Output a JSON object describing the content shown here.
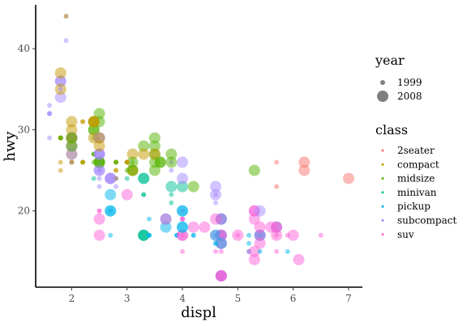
{
  "chart_data": {
    "type": "scatter",
    "xlabel": "displ",
    "ylabel": "hwy",
    "x_ticks": [
      2,
      3,
      4,
      5,
      6,
      7
    ],
    "y_ticks": [
      20,
      30,
      40
    ],
    "xlim": [
      1.35,
      7.25
    ],
    "ylim": [
      10.6,
      45.4
    ],
    "grid": false,
    "legend_placement": "right",
    "legends": [
      {
        "title": "year",
        "kind": "size",
        "entries": [
          {
            "label": "1999",
            "radius": 3
          },
          {
            "label": "2008",
            "radius": 7
          }
        ]
      },
      {
        "title": "class",
        "kind": "color",
        "entries": [
          {
            "label": "2seater",
            "color": "#F8766D"
          },
          {
            "label": "compact",
            "color": "#C49A00"
          },
          {
            "label": "midsize",
            "color": "#53B400"
          },
          {
            "label": "minivan",
            "color": "#00C094"
          },
          {
            "label": "pickup",
            "color": "#00B6EB"
          },
          {
            "label": "subcompact",
            "color": "#A58AFF"
          },
          {
            "label": "suv",
            "color": "#FB61D7"
          }
        ]
      }
    ],
    "alpha": 0.5,
    "points": [
      [
        1.8,
        29,
        "compact",
        1999
      ],
      [
        1.8,
        29,
        "compact",
        1999
      ],
      [
        2.0,
        31,
        "compact",
        2008
      ],
      [
        2.0,
        30,
        "compact",
        2008
      ],
      [
        2.8,
        26,
        "compact",
        1999
      ],
      [
        2.8,
        26,
        "compact",
        1999
      ],
      [
        3.1,
        27,
        "compact",
        2008
      ],
      [
        1.8,
        26,
        "compact",
        1999
      ],
      [
        1.8,
        25,
        "compact",
        1999
      ],
      [
        2.0,
        28,
        "compact",
        2008
      ],
      [
        2.0,
        27,
        "compact",
        2008
      ],
      [
        2.8,
        25,
        "compact",
        1999
      ],
      [
        2.8,
        25,
        "compact",
        1999
      ],
      [
        3.1,
        25,
        "compact",
        2008
      ],
      [
        3.1,
        25,
        "compact",
        2008
      ],
      [
        2.8,
        24,
        "midsize",
        1999
      ],
      [
        3.1,
        25,
        "midsize",
        2008
      ],
      [
        4.2,
        23,
        "midsize",
        2008
      ],
      [
        5.3,
        20,
        "suv",
        2008
      ],
      [
        5.3,
        15,
        "suv",
        2008
      ],
      [
        5.3,
        20,
        "suv",
        2008
      ],
      [
        5.7,
        17,
        "suv",
        1999
      ],
      [
        6.0,
        17,
        "suv",
        2008
      ],
      [
        5.7,
        26,
        "2seater",
        1999
      ],
      [
        5.7,
        23,
        "2seater",
        1999
      ],
      [
        6.2,
        26,
        "2seater",
        2008
      ],
      [
        6.2,
        25,
        "2seater",
        2008
      ],
      [
        7.0,
        24,
        "2seater",
        2008
      ],
      [
        5.3,
        19,
        "suv",
        2008
      ],
      [
        5.3,
        14,
        "suv",
        2008
      ],
      [
        5.7,
        15,
        "suv",
        1999
      ],
      [
        6.5,
        17,
        "suv",
        1999
      ],
      [
        2.4,
        27,
        "midsize",
        1999
      ],
      [
        2.4,
        30,
        "midsize",
        2008
      ],
      [
        3.1,
        26,
        "midsize",
        1999
      ],
      [
        3.5,
        29,
        "midsize",
        2008
      ],
      [
        3.6,
        26,
        "midsize",
        2008
      ],
      [
        2.4,
        24,
        "minivan",
        1999
      ],
      [
        3.0,
        24,
        "minivan",
        1999
      ],
      [
        3.3,
        22,
        "minivan",
        1999
      ],
      [
        3.3,
        22,
        "minivan",
        1999
      ],
      [
        3.3,
        24,
        "minivan",
        2008
      ],
      [
        3.3,
        24,
        "minivan",
        2008
      ],
      [
        3.3,
        17,
        "minivan",
        2008
      ],
      [
        3.8,
        22,
        "minivan",
        1999
      ],
      [
        3.8,
        21,
        "minivan",
        1999
      ],
      [
        3.8,
        23,
        "minivan",
        2008
      ],
      [
        4.0,
        23,
        "minivan",
        2008
      ],
      [
        3.7,
        19,
        "pickup",
        2008
      ],
      [
        3.7,
        18,
        "pickup",
        2008
      ],
      [
        3.9,
        17,
        "pickup",
        1999
      ],
      [
        3.9,
        17,
        "pickup",
        1999
      ],
      [
        4.7,
        19,
        "pickup",
        2008
      ],
      [
        4.7,
        19,
        "pickup",
        2008
      ],
      [
        4.7,
        12,
        "pickup",
        2008
      ],
      [
        5.2,
        17,
        "pickup",
        1999
      ],
      [
        5.2,
        15,
        "pickup",
        1999
      ],
      [
        3.9,
        17,
        "pickup",
        1999
      ],
      [
        4.7,
        17,
        "pickup",
        2008
      ],
      [
        4.7,
        12,
        "pickup",
        2008
      ],
      [
        4.7,
        17,
        "pickup",
        2008
      ],
      [
        5.2,
        16,
        "pickup",
        1999
      ],
      [
        5.7,
        18,
        "pickup",
        2008
      ],
      [
        5.9,
        15,
        "pickup",
        1999
      ],
      [
        4.7,
        16,
        "suv",
        2008
      ],
      [
        4.7,
        12,
        "suv",
        2008
      ],
      [
        4.7,
        17,
        "suv",
        2008
      ],
      [
        4.7,
        17,
        "suv",
        2008
      ],
      [
        4.7,
        16,
        "suv",
        2008
      ],
      [
        4.7,
        12,
        "suv",
        2008
      ],
      [
        5.2,
        15,
        "suv",
        1999
      ],
      [
        5.7,
        17,
        "suv",
        2008
      ],
      [
        5.9,
        17,
        "suv",
        1999
      ],
      [
        4.6,
        17,
        "pickup",
        1999
      ],
      [
        5.4,
        17,
        "pickup",
        1999
      ],
      [
        5.4,
        17,
        "pickup",
        2008
      ],
      [
        4.0,
        19,
        "suv",
        1999
      ],
      [
        4.0,
        19,
        "suv",
        1999
      ],
      [
        4.0,
        17,
        "suv",
        2008
      ],
      [
        4.0,
        17,
        "suv",
        2008
      ],
      [
        4.6,
        17,
        "suv",
        2008
      ],
      [
        5.0,
        17,
        "suv",
        1999
      ],
      [
        4.2,
        17,
        "pickup",
        1999
      ],
      [
        4.2,
        17,
        "pickup",
        1999
      ],
      [
        4.6,
        16,
        "pickup",
        1999
      ],
      [
        4.6,
        16,
        "pickup",
        1999
      ],
      [
        4.6,
        17,
        "pickup",
        2008
      ],
      [
        5.4,
        15,
        "pickup",
        1999
      ],
      [
        5.4,
        17,
        "pickup",
        2008
      ],
      [
        3.8,
        26,
        "subcompact",
        1999
      ],
      [
        3.8,
        25,
        "subcompact",
        1999
      ],
      [
        4.0,
        26,
        "subcompact",
        2008
      ],
      [
        4.0,
        24,
        "subcompact",
        2008
      ],
      [
        4.6,
        21,
        "subcompact",
        1999
      ],
      [
        4.6,
        22,
        "subcompact",
        1999
      ],
      [
        4.6,
        23,
        "subcompact",
        2008
      ],
      [
        4.6,
        22,
        "subcompact",
        2008
      ],
      [
        5.4,
        20,
        "subcompact",
        2008
      ],
      [
        1.6,
        33,
        "subcompact",
        1999
      ],
      [
        1.6,
        32,
        "subcompact",
        1999
      ],
      [
        1.6,
        32,
        "subcompact",
        1999
      ],
      [
        1.6,
        29,
        "subcompact",
        1999
      ],
      [
        1.6,
        32,
        "subcompact",
        1999
      ],
      [
        1.8,
        34,
        "subcompact",
        2008
      ],
      [
        1.8,
        36,
        "subcompact",
        2008
      ],
      [
        1.8,
        36,
        "subcompact",
        2008
      ],
      [
        2.0,
        29,
        "subcompact",
        2008
      ],
      [
        2.4,
        26,
        "midsize",
        1999
      ],
      [
        2.4,
        27,
        "midsize",
        1999
      ],
      [
        2.4,
        30,
        "midsize",
        2008
      ],
      [
        2.4,
        31,
        "midsize",
        2008
      ],
      [
        2.5,
        26,
        "midsize",
        2008
      ],
      [
        2.5,
        26,
        "midsize",
        2008
      ],
      [
        3.3,
        28,
        "midsize",
        2008
      ],
      [
        2.0,
        26,
        "subcompact",
        1999
      ],
      [
        2.0,
        29,
        "subcompact",
        1999
      ],
      [
        2.0,
        28,
        "subcompact",
        2008
      ],
      [
        2.0,
        27,
        "subcompact",
        2008
      ],
      [
        2.7,
        24,
        "subcompact",
        2008
      ],
      [
        2.7,
        24,
        "subcompact",
        2008
      ],
      [
        2.7,
        24,
        "subcompact",
        2008
      ],
      [
        3.0,
        22,
        "suv",
        2008
      ],
      [
        3.7,
        19,
        "suv",
        2008
      ],
      [
        4.0,
        20,
        "suv",
        1999
      ],
      [
        4.7,
        17,
        "suv",
        1999
      ],
      [
        4.7,
        12,
        "suv",
        2008
      ],
      [
        4.7,
        19,
        "suv",
        2008
      ],
      [
        5.7,
        18,
        "suv",
        2008
      ],
      [
        6.1,
        14,
        "suv",
        2008
      ],
      [
        4.0,
        15,
        "suv",
        1999
      ],
      [
        4.2,
        18,
        "suv",
        2008
      ],
      [
        4.4,
        18,
        "suv",
        2008
      ],
      [
        4.6,
        15,
        "suv",
        1999
      ],
      [
        5.4,
        17,
        "suv",
        2008
      ],
      [
        5.4,
        16,
        "suv",
        2008
      ],
      [
        5.4,
        18,
        "suv",
        2008
      ],
      [
        4.0,
        17,
        "suv",
        1999
      ],
      [
        4.0,
        19,
        "suv",
        1999
      ],
      [
        4.6,
        19,
        "suv",
        2008
      ],
      [
        5.0,
        17,
        "suv",
        2008
      ],
      [
        2.4,
        29,
        "midsize",
        1999
      ],
      [
        2.4,
        27,
        "midsize",
        1999
      ],
      [
        2.5,
        31,
        "midsize",
        2008
      ],
      [
        2.5,
        32,
        "midsize",
        2008
      ],
      [
        3.5,
        27,
        "midsize",
        2008
      ],
      [
        3.5,
        26,
        "midsize",
        2008
      ],
      [
        3.0,
        26,
        "midsize",
        1999
      ],
      [
        3.0,
        25,
        "midsize",
        1999
      ],
      [
        3.5,
        25,
        "midsize",
        2008
      ],
      [
        3.3,
        17,
        "minivan",
        2008
      ],
      [
        3.3,
        17,
        "minivan",
        2008
      ],
      [
        4.0,
        20,
        "pickup",
        2008
      ],
      [
        5.6,
        18,
        "suv",
        2008
      ],
      [
        3.1,
        26,
        "midsize",
        2008
      ],
      [
        3.8,
        26,
        "midsize",
        2008
      ],
      [
        3.8,
        27,
        "midsize",
        2008
      ],
      [
        3.5,
        28,
        "midsize",
        2008
      ],
      [
        5.3,
        25,
        "midsize",
        2008
      ],
      [
        2.5,
        25,
        "subcompact",
        1999
      ],
      [
        2.5,
        24,
        "subcompact",
        1999
      ],
      [
        2.5,
        27,
        "subcompact",
        2008
      ],
      [
        2.5,
        25,
        "subcompact",
        2008
      ],
      [
        2.5,
        26,
        "subcompact",
        1999
      ],
      [
        2.5,
        23,
        "subcompact",
        1999
      ],
      [
        2.2,
        26,
        "midsize",
        1999
      ],
      [
        2.2,
        26,
        "midsize",
        1999
      ],
      [
        2.5,
        26,
        "midsize",
        2008
      ],
      [
        2.5,
        26,
        "midsize",
        2008
      ],
      [
        2.5,
        25,
        "subcompact",
        1999
      ],
      [
        2.5,
        27,
        "subcompact",
        2008
      ],
      [
        2.5,
        25,
        "subcompact",
        2008
      ],
      [
        2.5,
        27,
        "subcompact",
        2008
      ],
      [
        2.5,
        20,
        "suv",
        1999
      ],
      [
        2.5,
        20,
        "suv",
        1999
      ],
      [
        2.5,
        19,
        "suv",
        2008
      ],
      [
        2.5,
        17,
        "suv",
        2008
      ],
      [
        2.7,
        20,
        "pickup",
        1999
      ],
      [
        2.7,
        17,
        "pickup",
        1999
      ],
      [
        3.4,
        17,
        "pickup",
        1999
      ],
      [
        3.4,
        17,
        "pickup",
        1999
      ],
      [
        4.0,
        18,
        "pickup",
        2008
      ],
      [
        4.7,
        16,
        "pickup",
        2008
      ],
      [
        2.2,
        31,
        "compact",
        1999
      ],
      [
        2.2,
        31,
        "compact",
        1999
      ],
      [
        2.4,
        31,
        "compact",
        2008
      ],
      [
        2.4,
        31,
        "compact",
        2008
      ],
      [
        3.0,
        26,
        "compact",
        1999
      ],
      [
        3.0,
        26,
        "compact",
        1999
      ],
      [
        3.5,
        27,
        "compact",
        2008
      ],
      [
        2.2,
        26,
        "compact",
        1999
      ],
      [
        2.2,
        26,
        "compact",
        1999
      ],
      [
        2.4,
        29,
        "compact",
        2008
      ],
      [
        2.4,
        31,
        "compact",
        2008
      ],
      [
        3.0,
        26,
        "compact",
        1999
      ],
      [
        3.0,
        26,
        "compact",
        1999
      ],
      [
        3.3,
        27,
        "compact",
        2008
      ],
      [
        1.8,
        29,
        "compact",
        1999
      ],
      [
        1.8,
        29,
        "compact",
        1999
      ],
      [
        1.8,
        35,
        "compact",
        2008
      ],
      [
        1.8,
        37,
        "compact",
        2008
      ],
      [
        1.8,
        35,
        "subcompact",
        1999
      ],
      [
        4.7,
        15,
        "suv",
        1999
      ],
      [
        5.7,
        18,
        "suv",
        2008
      ],
      [
        2.7,
        20,
        "pickup",
        2008
      ],
      [
        2.7,
        20,
        "pickup",
        2008
      ],
      [
        2.7,
        22,
        "pickup",
        2008
      ],
      [
        3.4,
        17,
        "pickup",
        1999
      ],
      [
        3.4,
        19,
        "pickup",
        1999
      ],
      [
        4.0,
        18,
        "pickup",
        2008
      ],
      [
        4.0,
        20,
        "pickup",
        2008
      ],
      [
        2.0,
        29,
        "compact",
        1999
      ],
      [
        2.0,
        26,
        "compact",
        1999
      ],
      [
        2.0,
        29,
        "compact",
        2008
      ],
      [
        2.0,
        29,
        "compact",
        2008
      ],
      [
        2.8,
        24,
        "compact",
        1999
      ],
      [
        1.9,
        44,
        "subcompact",
        1999
      ],
      [
        2.0,
        29,
        "subcompact",
        1999
      ],
      [
        2.0,
        26,
        "subcompact",
        1999
      ],
      [
        2.0,
        29,
        "subcompact",
        2008
      ],
      [
        2.0,
        29,
        "subcompact",
        2008
      ],
      [
        2.5,
        29,
        "subcompact",
        2008
      ],
      [
        2.5,
        29,
        "subcompact",
        2008
      ],
      [
        2.8,
        23,
        "subcompact",
        1999
      ],
      [
        2.8,
        24,
        "subcompact",
        1999
      ],
      [
        1.9,
        44,
        "compact",
        1999
      ],
      [
        1.9,
        41,
        "subcompact",
        1999
      ],
      [
        2.0,
        29,
        "compact",
        2008
      ],
      [
        2.0,
        26,
        "compact",
        1999
      ],
      [
        2.5,
        28,
        "compact",
        2008
      ],
      [
        2.5,
        29,
        "compact",
        2008
      ],
      [
        1.8,
        29,
        "midsize",
        1999
      ],
      [
        1.8,
        29,
        "midsize",
        1999
      ],
      [
        2.0,
        28,
        "midsize",
        2008
      ],
      [
        2.0,
        29,
        "midsize",
        2008
      ],
      [
        2.8,
        26,
        "midsize",
        1999
      ],
      [
        2.8,
        26,
        "midsize",
        1999
      ],
      [
        3.6,
        26,
        "midsize",
        2008
      ]
    ]
  }
}
